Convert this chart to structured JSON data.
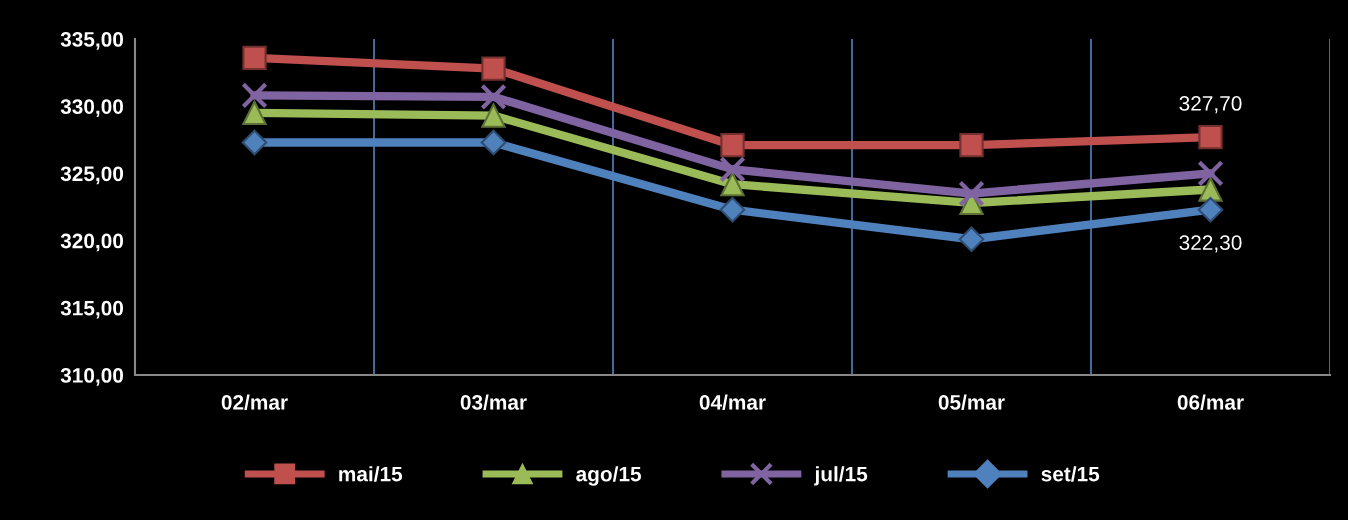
{
  "chart_data": {
    "type": "line",
    "categories": [
      "02/mar",
      "03/mar",
      "04/mar",
      "05/mar",
      "06/mar"
    ],
    "series": [
      {
        "name": "mai/15",
        "color": "#c0504d",
        "marker": "square",
        "values": [
          333.6,
          332.8,
          327.1,
          327.1,
          327.7
        ],
        "value_labels": [
          null,
          null,
          null,
          null,
          "327,70"
        ]
      },
      {
        "name": "ago/15",
        "color": "#9bbb59",
        "marker": "triangle",
        "values": [
          329.5,
          329.3,
          324.2,
          322.8,
          323.8
        ]
      },
      {
        "name": "jul/15",
        "color": "#8064a2",
        "marker": "cross",
        "values": [
          330.8,
          330.7,
          325.3,
          323.5,
          325.0
        ]
      },
      {
        "name": "set/15",
        "color": "#4f81bd",
        "marker": "diamond",
        "values": [
          327.3,
          327.3,
          322.3,
          320.1,
          322.3
        ],
        "value_labels": [
          null,
          null,
          null,
          null,
          "322,30"
        ]
      }
    ],
    "ylim": [
      310,
      335
    ],
    "yticks": [
      {
        "value": 310,
        "label": "310,00"
      },
      {
        "value": 315,
        "label": "315,00"
      },
      {
        "value": 320,
        "label": "320,00"
      },
      {
        "value": 325,
        "label": "325,00"
      },
      {
        "value": 330,
        "label": "330,00"
      },
      {
        "value": 335,
        "label": "335,00"
      }
    ],
    "grid": "x",
    "legend": "bottom",
    "line_style": "solid"
  }
}
